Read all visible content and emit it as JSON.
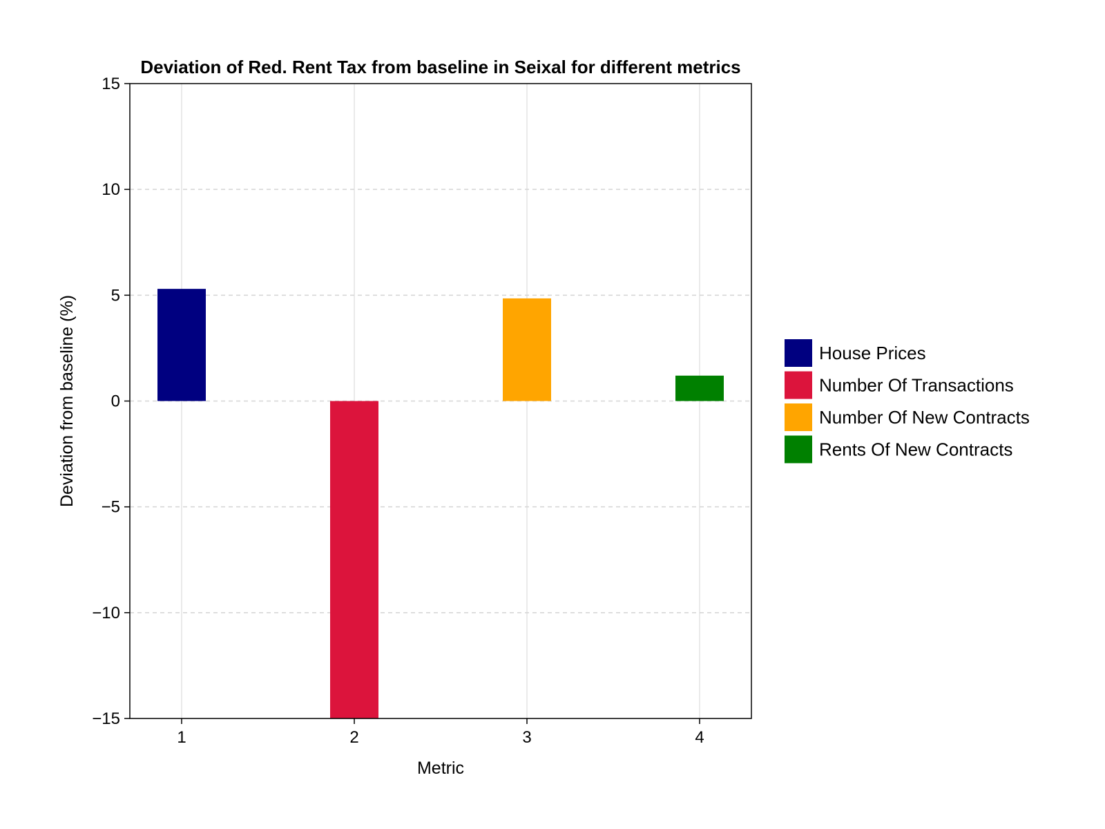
{
  "chart_data": {
    "type": "bar",
    "title": "Deviation of Red. Rent Tax from baseline in Seixal for different metrics",
    "xlabel": "Metric",
    "ylabel": "Deviation from baseline (%)",
    "categories": [
      "1",
      "2",
      "3",
      "4"
    ],
    "x": [
      1,
      2,
      3,
      4
    ],
    "ylim": [
      -15,
      15
    ],
    "xlim": [
      0.7,
      4.3
    ],
    "y_ticks": [
      -15,
      -10,
      -5,
      0,
      5,
      10,
      15
    ],
    "y_tick_labels": [
      "−15",
      "−10",
      "−5",
      "0",
      "5",
      "10",
      "15"
    ],
    "x_ticks": [
      1,
      2,
      3,
      4
    ],
    "grid": true,
    "legend_position": "right",
    "series": [
      {
        "name": "House Prices",
        "x": 1,
        "value": 5.3,
        "color": "#000080"
      },
      {
        "name": "Number Of Transactions",
        "x": 2,
        "value": -15.0,
        "color": "#DC143C"
      },
      {
        "name": "Number Of New Contracts",
        "x": 3,
        "value": 4.85,
        "color": "#FFA500"
      },
      {
        "name": "Rents Of New Contracts",
        "x": 4,
        "value": 1.2,
        "color": "#008000"
      }
    ]
  }
}
